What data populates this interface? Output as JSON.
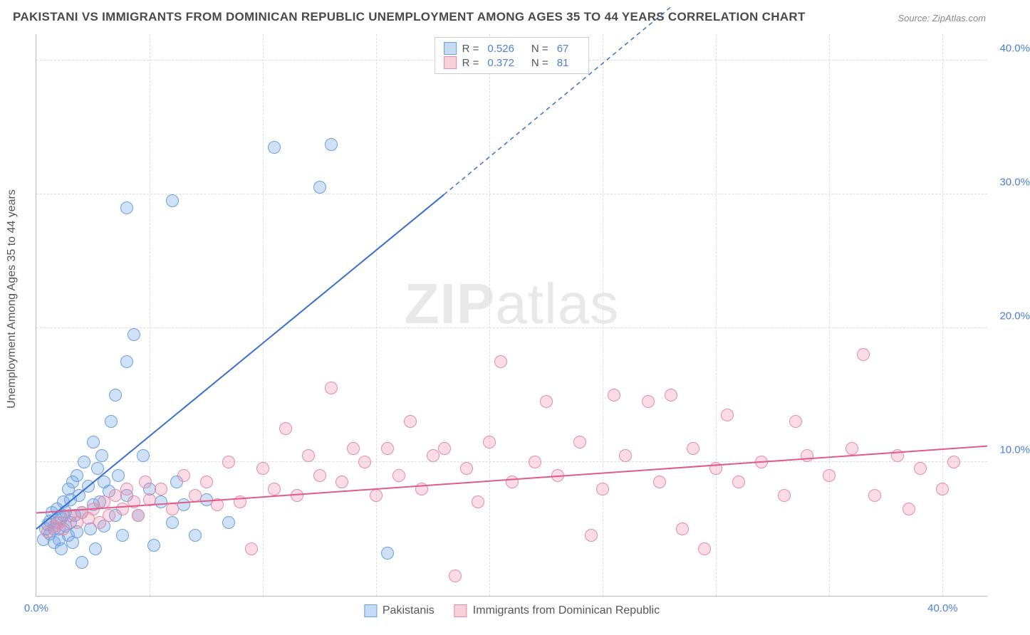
{
  "title": "PAKISTANI VS IMMIGRANTS FROM DOMINICAN REPUBLIC UNEMPLOYMENT AMONG AGES 35 TO 44 YEARS CORRELATION CHART",
  "source": "Source: ZipAtlas.com",
  "ylabel": "Unemployment Among Ages 35 to 44 years",
  "watermark_a": "ZIP",
  "watermark_b": "atlas",
  "chart": {
    "type": "scatter",
    "background_color": "#ffffff",
    "grid_color": "#dddddd",
    "axis_color": "#bbbbbb",
    "tick_color": "#4a7fd8",
    "tick_fontsize": 15,
    "label_fontsize": 16,
    "title_fontsize": 17,
    "title_color": "#4a4a4a",
    "xlim": [
      0,
      42
    ],
    "ylim": [
      0,
      42
    ],
    "ytick_values": [
      10,
      20,
      30,
      40
    ],
    "ytick_labels": [
      "10.0%",
      "20.0%",
      "30.0%",
      "40.0%"
    ],
    "xtick_values": [
      0,
      40
    ],
    "xtick_labels": [
      "0.0%",
      "40.0%"
    ],
    "xgrid_values": [
      5,
      10,
      15,
      20,
      25,
      30,
      35,
      40
    ],
    "marker_radius": 9,
    "marker_border_width": 1.5,
    "trendline_width": 2
  },
  "series": [
    {
      "name": "Pakistanis",
      "key": "pakistanis",
      "swatch_fill": "#c5daf4",
      "swatch_border": "#6a9fe0",
      "marker_fill": "rgba(120,170,230,0.35)",
      "marker_border": "#6a9fe0",
      "line_color": "#3a6fd0",
      "R": "0.526",
      "N": "67",
      "trendline": {
        "x1": 0,
        "y1": 5.0,
        "x2": 18,
        "y2": 30.0,
        "dash_x2": 28,
        "dash_y2": 44
      },
      "points": [
        [
          0.3,
          4.2
        ],
        [
          0.4,
          5.0
        ],
        [
          0.5,
          5.3
        ],
        [
          0.6,
          4.6
        ],
        [
          0.6,
          5.6
        ],
        [
          0.7,
          6.2
        ],
        [
          0.8,
          4.0
        ],
        [
          0.8,
          5.0
        ],
        [
          0.9,
          5.5
        ],
        [
          0.9,
          6.5
        ],
        [
          1.0,
          4.2
        ],
        [
          1.0,
          5.0
        ],
        [
          1.1,
          5.8
        ],
        [
          1.1,
          3.5
        ],
        [
          1.2,
          6.0
        ],
        [
          1.2,
          7.0
        ],
        [
          1.3,
          5.2
        ],
        [
          1.3,
          6.3
        ],
        [
          1.4,
          4.5
        ],
        [
          1.4,
          8.0
        ],
        [
          1.5,
          5.5
        ],
        [
          1.5,
          7.2
        ],
        [
          1.6,
          8.5
        ],
        [
          1.7,
          6.0
        ],
        [
          1.8,
          9.0
        ],
        [
          1.8,
          4.8
        ],
        [
          1.9,
          7.5
        ],
        [
          2.0,
          6.2
        ],
        [
          2.0,
          2.5
        ],
        [
          2.1,
          10.0
        ],
        [
          2.3,
          8.2
        ],
        [
          2.4,
          5.0
        ],
        [
          2.5,
          6.8
        ],
        [
          2.5,
          11.5
        ],
        [
          2.6,
          3.5
        ],
        [
          2.7,
          9.5
        ],
        [
          2.8,
          7.0
        ],
        [
          3.0,
          5.2
        ],
        [
          3.0,
          8.5
        ],
        [
          3.2,
          7.8
        ],
        [
          3.3,
          13.0
        ],
        [
          3.5,
          6.0
        ],
        [
          3.5,
          15.0
        ],
        [
          3.6,
          9.0
        ],
        [
          3.8,
          4.5
        ],
        [
          4.0,
          17.5
        ],
        [
          4.0,
          7.5
        ],
        [
          4.3,
          19.5
        ],
        [
          4.5,
          6.0
        ],
        [
          4.7,
          10.5
        ],
        [
          5.0,
          8.0
        ],
        [
          5.2,
          3.8
        ],
        [
          5.5,
          7.0
        ],
        [
          6.0,
          5.5
        ],
        [
          6.0,
          29.5
        ],
        [
          6.2,
          8.5
        ],
        [
          6.5,
          6.8
        ],
        [
          7.0,
          4.5
        ],
        [
          7.5,
          7.2
        ],
        [
          8.5,
          5.5
        ],
        [
          10.5,
          33.5
        ],
        [
          12.5,
          30.5
        ],
        [
          13.0,
          33.7
        ],
        [
          15.5,
          3.2
        ],
        [
          4.0,
          29.0
        ],
        [
          1.6,
          4.0
        ],
        [
          2.9,
          10.5
        ]
      ]
    },
    {
      "name": "Immigrants from Dominican Republic",
      "key": "dominican",
      "swatch_fill": "#f7d0da",
      "swatch_border": "#e88aa5",
      "marker_fill": "rgba(235,140,170,0.3)",
      "marker_border": "#e88aa5",
      "line_color": "#e05a8a",
      "R": "0.372",
      "N": "81",
      "trendline": {
        "x1": 0,
        "y1": 6.2,
        "x2": 42,
        "y2": 11.2
      },
      "points": [
        [
          0.5,
          4.8
        ],
        [
          0.8,
          5.2
        ],
        [
          1.0,
          5.5
        ],
        [
          1.2,
          5.0
        ],
        [
          1.5,
          6.0
        ],
        [
          1.8,
          5.5
        ],
        [
          2.0,
          6.2
        ],
        [
          2.3,
          5.8
        ],
        [
          2.5,
          6.5
        ],
        [
          2.8,
          5.5
        ],
        [
          3.0,
          7.0
        ],
        [
          3.2,
          6.0
        ],
        [
          3.5,
          7.5
        ],
        [
          3.8,
          6.5
        ],
        [
          4.0,
          8.0
        ],
        [
          4.3,
          7.0
        ],
        [
          4.5,
          6.0
        ],
        [
          4.8,
          8.5
        ],
        [
          5.0,
          7.2
        ],
        [
          5.5,
          8.0
        ],
        [
          6.0,
          6.5
        ],
        [
          6.5,
          9.0
        ],
        [
          7.0,
          7.5
        ],
        [
          7.5,
          8.5
        ],
        [
          8.0,
          6.8
        ],
        [
          8.5,
          10.0
        ],
        [
          9.0,
          7.0
        ],
        [
          9.5,
          3.5
        ],
        [
          10.0,
          9.5
        ],
        [
          10.5,
          8.0
        ],
        [
          11.0,
          12.5
        ],
        [
          11.5,
          7.5
        ],
        [
          12.0,
          10.5
        ],
        [
          12.5,
          9.0
        ],
        [
          13.0,
          15.5
        ],
        [
          13.5,
          8.5
        ],
        [
          14.0,
          11.0
        ],
        [
          14.5,
          10.0
        ],
        [
          15.0,
          7.5
        ],
        [
          15.5,
          11.0
        ],
        [
          16.0,
          9.0
        ],
        [
          16.5,
          13.0
        ],
        [
          17.0,
          8.0
        ],
        [
          17.5,
          10.5
        ],
        [
          18.0,
          11.0
        ],
        [
          18.5,
          1.5
        ],
        [
          19.0,
          9.5
        ],
        [
          19.5,
          7.0
        ],
        [
          20.0,
          11.5
        ],
        [
          20.5,
          17.5
        ],
        [
          21.0,
          8.5
        ],
        [
          22.0,
          10.0
        ],
        [
          22.5,
          14.5
        ],
        [
          23.0,
          9.0
        ],
        [
          24.0,
          11.5
        ],
        [
          24.5,
          4.5
        ],
        [
          25.0,
          8.0
        ],
        [
          25.5,
          15.0
        ],
        [
          26.0,
          10.5
        ],
        [
          27.0,
          14.5
        ],
        [
          27.5,
          8.5
        ],
        [
          28.0,
          15.0
        ],
        [
          28.5,
          5.0
        ],
        [
          29.0,
          11.0
        ],
        [
          29.5,
          3.5
        ],
        [
          30.0,
          9.5
        ],
        [
          30.5,
          13.5
        ],
        [
          31.0,
          8.5
        ],
        [
          32.0,
          10.0
        ],
        [
          33.0,
          7.5
        ],
        [
          33.5,
          13.0
        ],
        [
          34.0,
          10.5
        ],
        [
          35.0,
          9.0
        ],
        [
          36.0,
          11.0
        ],
        [
          36.5,
          18.0
        ],
        [
          37.0,
          7.5
        ],
        [
          38.0,
          10.5
        ],
        [
          38.5,
          6.5
        ],
        [
          39.0,
          9.5
        ],
        [
          40.0,
          8.0
        ],
        [
          40.5,
          10.0
        ]
      ]
    }
  ],
  "legend_top": {
    "R_label": "R =",
    "N_label": "N ="
  }
}
